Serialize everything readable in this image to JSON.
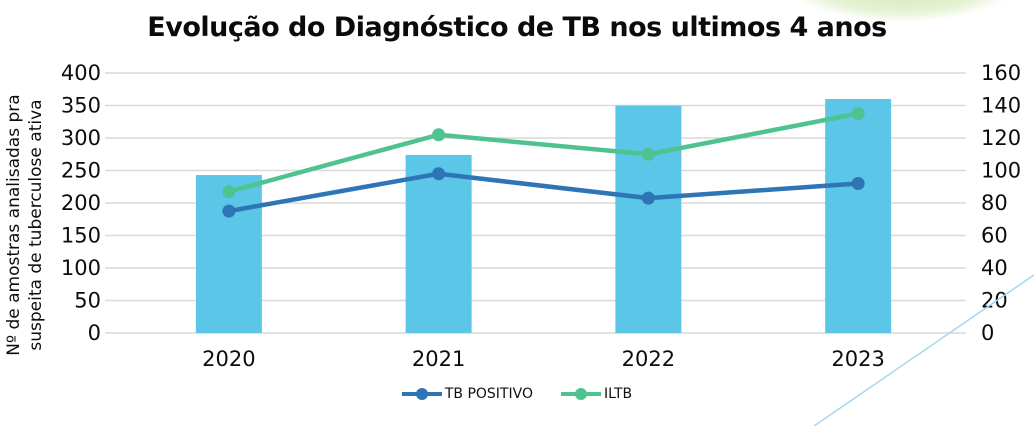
{
  "title": "Evolução do Diagnóstico de TB nos ultimos 4 anos",
  "chart_data": {
    "type": "bar+line",
    "title": "Evolução do Diagnóstico de TB nos ultimos 4 anos",
    "categories": [
      "2020",
      "2021",
      "2022",
      "2023"
    ],
    "bar_series": {
      "values": [
        243,
        274,
        350,
        360
      ],
      "axis": "left",
      "color": "#5bc6e8"
    },
    "line_series": [
      {
        "name": "TB POSITIVO",
        "values": [
          75,
          98,
          83,
          92
        ],
        "axis": "right",
        "color": "#2e75b6"
      },
      {
        "name": "ILTB",
        "values": [
          87,
          122,
          110,
          135
        ],
        "axis": "right",
        "color": "#4ec28f"
      }
    ],
    "left_axis": {
      "min": 0,
      "max": 400,
      "tick_step": 50,
      "tick_labels": [
        "400",
        "350",
        "300",
        "250",
        "200",
        "150",
        "100",
        "50",
        "0"
      ]
    },
    "right_axis": {
      "min": 0,
      "max": 160,
      "tick_step": 20,
      "tick_labels": [
        "160",
        "140",
        "120",
        "100",
        "80",
        "60",
        "40",
        "20",
        "0"
      ]
    },
    "ylabel": "Nº de amostras analisadas pra suspeita de tuberculose ativa",
    "ylabel_lines": [
      "Nº de amostras analisadas pra",
      "suspeita de tuberculose ativa"
    ],
    "xlabel": "",
    "grid": true,
    "legend_position": "bottom"
  },
  "decor": {
    "gridline_color": "#d9d9d9",
    "ellipse_color": "#dcedc4",
    "diagonal_line_color": "#a5d6f0",
    "text_color": "#0d0d0d"
  }
}
